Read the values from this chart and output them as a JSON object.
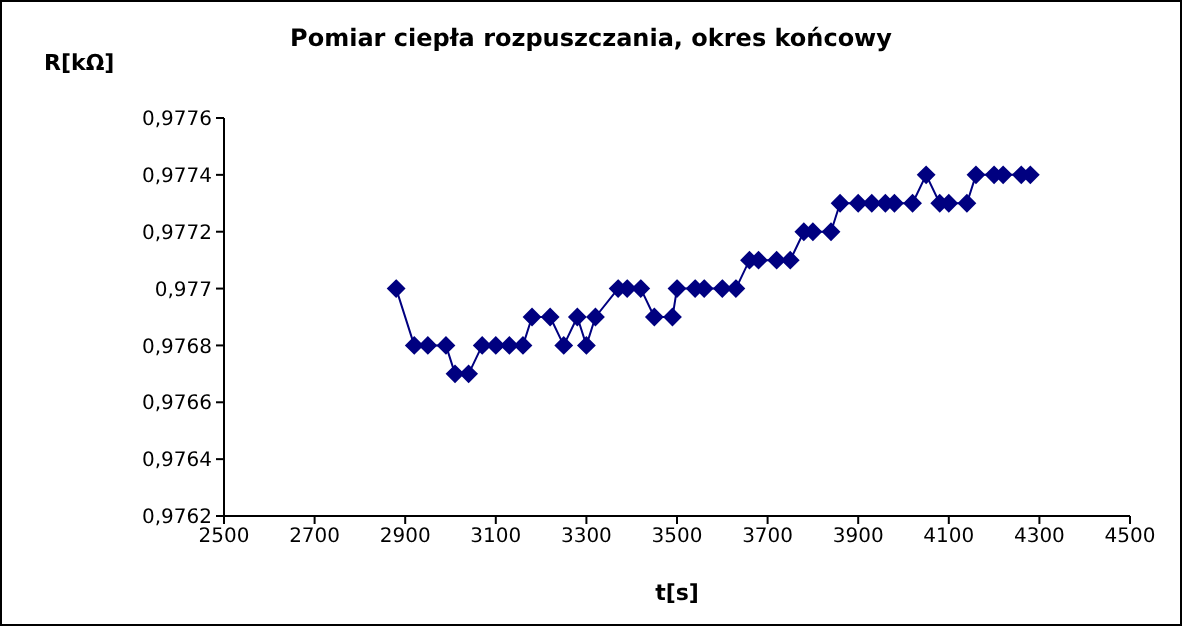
{
  "chart_data": {
    "type": "line",
    "title": "Pomiar ciepła rozpuszczania, okres końcowy",
    "xlabel": "t[s]",
    "ylabel": "R[kΩ]",
    "x": [
      2880,
      2920,
      2950,
      2990,
      3010,
      3040,
      3070,
      3100,
      3130,
      3160,
      3180,
      3220,
      3250,
      3280,
      3300,
      3320,
      3370,
      3390,
      3420,
      3450,
      3490,
      3500,
      3540,
      3560,
      3600,
      3630,
      3660,
      3680,
      3720,
      3750,
      3780,
      3800,
      3840,
      3860,
      3900,
      3930,
      3960,
      3980,
      4020,
      4050,
      4080,
      4100,
      4140,
      4160,
      4200,
      4220,
      4260,
      4280
    ],
    "series": [
      {
        "color": "#000080",
        "values": [
          0.977,
          0.9768,
          0.9768,
          0.9768,
          0.9767,
          0.9767,
          0.9768,
          0.9768,
          0.9768,
          0.9768,
          0.9769,
          0.9769,
          0.9768,
          0.9769,
          0.9768,
          0.9769,
          0.977,
          0.977,
          0.977,
          0.9769,
          0.9769,
          0.977,
          0.977,
          0.977,
          0.977,
          0.977,
          0.9771,
          0.9771,
          0.9771,
          0.9771,
          0.9772,
          0.9772,
          0.9772,
          0.9773,
          0.9773,
          0.9773,
          0.9773,
          0.9773,
          0.9773,
          0.9774,
          0.9773,
          0.9773,
          0.9773,
          0.9774,
          0.9774,
          0.9774,
          0.9774,
          0.9774
        ]
      }
    ],
    "xlim": [
      2500,
      4500
    ],
    "xticks": [
      2500,
      2700,
      2900,
      3100,
      3300,
      3500,
      3700,
      3900,
      4100,
      4300,
      4500
    ],
    "ylim": [
      0.9762,
      0.9776
    ],
    "yticks": [
      {
        "value": 0.9762,
        "label": "0,9762"
      },
      {
        "value": 0.9764,
        "label": "0,9764"
      },
      {
        "value": 0.9766,
        "label": "0,9766"
      },
      {
        "value": 0.9768,
        "label": "0,9768"
      },
      {
        "value": 0.977,
        "label": "0,977"
      },
      {
        "value": 0.9772,
        "label": "0,9772"
      },
      {
        "value": 0.9774,
        "label": "0,9774"
      },
      {
        "value": 0.9776,
        "label": "0,9776"
      }
    ],
    "marker": "diamond",
    "line_style": "solid",
    "legend": false,
    "grid": false
  }
}
